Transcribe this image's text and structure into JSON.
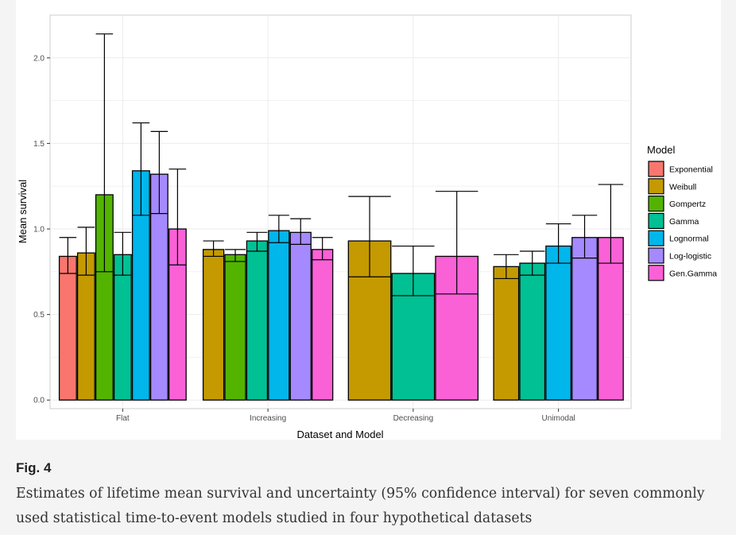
{
  "figure": {
    "label": "Fig. 4",
    "caption": "Estimates of lifetime mean survival and uncertainty (95% confidence interval) for seven commonly used statistical time-to-event models studied in four hypothetical datasets"
  },
  "chart_data": {
    "type": "bar",
    "xlabel": "Dataset and Model",
    "ylabel": "Mean survival",
    "ylim": [
      -0.05,
      2.25
    ],
    "yticks": [
      "0.0",
      "0.5",
      "1.0",
      "1.5",
      "2.0"
    ],
    "grid": true,
    "legend": {
      "title": "Model",
      "placement": "right"
    },
    "categories": [
      "Flat",
      "Increasing",
      "Decreasing",
      "Unimodal"
    ],
    "series": [
      {
        "name": "Exponential",
        "color": "#F8766D",
        "values": [
          0.84,
          null,
          null,
          null
        ],
        "ci_low": [
          0.74,
          null,
          null,
          null
        ],
        "ci_high": [
          0.95,
          null,
          null,
          null
        ]
      },
      {
        "name": "Weibull",
        "color": "#C49A00",
        "values": [
          0.86,
          0.88,
          0.93,
          0.78
        ],
        "ci_low": [
          0.73,
          0.84,
          0.72,
          0.71
        ],
        "ci_high": [
          1.01,
          0.93,
          1.19,
          0.85
        ]
      },
      {
        "name": "Gompertz",
        "color": "#53B400",
        "values": [
          1.2,
          0.85,
          null,
          null
        ],
        "ci_low": [
          0.75,
          0.81,
          null,
          null
        ],
        "ci_high": [
          2.14,
          0.88,
          null,
          null
        ]
      },
      {
        "name": "Gamma",
        "color": "#00C094",
        "values": [
          0.85,
          0.93,
          0.74,
          0.8
        ],
        "ci_low": [
          0.73,
          0.87,
          0.61,
          0.73
        ],
        "ci_high": [
          0.98,
          0.98,
          0.9,
          0.87
        ]
      },
      {
        "name": "Lognormal",
        "color": "#00B6EB",
        "values": [
          1.34,
          0.99,
          null,
          0.9
        ],
        "ci_low": [
          1.08,
          0.92,
          null,
          0.8
        ],
        "ci_high": [
          1.62,
          1.08,
          null,
          1.03
        ]
      },
      {
        "name": "Log-logistic",
        "color": "#A58AFF",
        "values": [
          1.32,
          0.98,
          null,
          0.95
        ],
        "ci_low": [
          1.09,
          0.91,
          null,
          0.83
        ],
        "ci_high": [
          1.57,
          1.06,
          null,
          1.08
        ]
      },
      {
        "name": "Gen.Gamma",
        "color": "#FB61D7",
        "values": [
          1.0,
          0.88,
          0.84,
          0.95
        ],
        "ci_low": [
          0.79,
          0.82,
          0.62,
          0.8
        ],
        "ci_high": [
          1.35,
          0.95,
          1.22,
          1.26
        ]
      }
    ]
  }
}
